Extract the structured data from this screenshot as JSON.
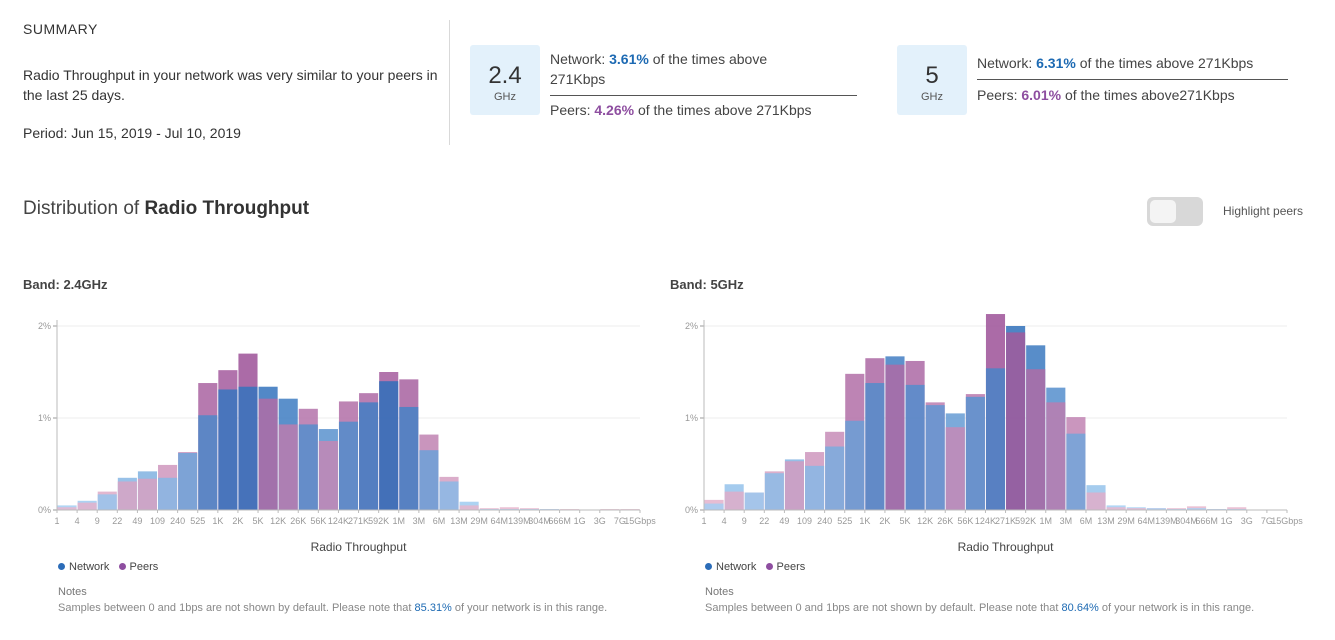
{
  "summary": {
    "title": "SUMMARY",
    "text": "Radio Throughput in your network was very similar to your peers in the last 25 days.",
    "period": "Period: Jun 15, 2019 - Jul 10, 2019"
  },
  "bands": [
    {
      "big": "2.4",
      "small": "GHz",
      "network_prefix": "Network: ",
      "network_pct": "3.61%",
      "network_suffix": " of the times above 271Kbps",
      "peers_prefix": "Peers: ",
      "peers_pct": "4.26%",
      "peers_suffix": " of the times above 271Kbps"
    },
    {
      "big": "5",
      "small": "GHz",
      "network_prefix": "Network: ",
      "network_pct": "6.31%",
      "network_suffix": " of the times above 271Kbps",
      "peers_prefix": "Peers: ",
      "peers_pct": "6.01%",
      "peers_suffix": " of the times above271Kbps"
    }
  ],
  "distribution": {
    "prefix": "Distribution of ",
    "bold": "Radio Throughput"
  },
  "toggle": {
    "label": "Highlight peers",
    "on": false
  },
  "colors": {
    "network": "#1a5eb0",
    "peers": "#8e3f8e",
    "network_light": "#a9d3f5",
    "peers_light": "#e8b9cf"
  },
  "charts": [
    {
      "band_label": "Band: 2.4GHz",
      "legend": {
        "network": "Network",
        "peers": "Peers"
      },
      "notes_title": "Notes",
      "notes_prefix": "Samples between 0 and 1bps are not shown by default. Please note that ",
      "notes_pct": "85.31%",
      "notes_suffix": " of your network is in this range."
    },
    {
      "band_label": "Band: 5GHz",
      "legend": {
        "network": "Network",
        "peers": "Peers"
      },
      "notes_title": "Notes",
      "notes_prefix": "Samples between 0 and 1bps are not shown by default. Please note that ",
      "notes_pct": "80.64%",
      "notes_suffix": " of your network is in this range."
    }
  ],
  "chart_data": [
    {
      "type": "bar",
      "title": "Band: 2.4GHz",
      "xlabel": "Radio Throughput",
      "ylabel": "",
      "ylim": [
        0,
        2
      ],
      "yticks": [
        "0%",
        "1%",
        "2%"
      ],
      "tick_labels": [
        "1",
        "4",
        "9",
        "22",
        "49",
        "109",
        "240",
        "525",
        "1K",
        "2K",
        "5K",
        "12K",
        "26K",
        "56K",
        "124K",
        "271K",
        "592K",
        "1M",
        "3M",
        "6M",
        "13M",
        "29M",
        "64M",
        "139M",
        "304M",
        "666M",
        "1G",
        "3G",
        "7G",
        "15Gbps"
      ],
      "series": [
        {
          "name": "Network",
          "values": [
            0.05,
            0.1,
            0.17,
            0.35,
            0.42,
            0.35,
            0.62,
            1.03,
            1.31,
            1.34,
            1.34,
            1.21,
            0.93,
            0.88,
            0.96,
            1.17,
            1.4,
            1.12,
            0.65,
            0.31,
            0.09,
            0.01,
            0.01,
            0.01,
            0.01,
            0.0,
            0.0,
            0.0,
            0.0
          ]
        },
        {
          "name": "Peers",
          "values": [
            0.03,
            0.08,
            0.2,
            0.31,
            0.34,
            0.49,
            0.63,
            1.38,
            1.52,
            1.7,
            1.21,
            0.93,
            1.1,
            0.75,
            1.18,
            1.27,
            1.5,
            1.42,
            0.82,
            0.36,
            0.05,
            0.02,
            0.03,
            0.02,
            0.01,
            0.01,
            0.0,
            0.01,
            0.01
          ]
        }
      ],
      "grid": true,
      "legend_position": "bottom-left"
    },
    {
      "type": "bar",
      "title": "Band: 5GHz",
      "xlabel": "Radio Throughput",
      "ylabel": "",
      "ylim": [
        0,
        2
      ],
      "yticks": [
        "0%",
        "1%",
        "2%"
      ],
      "tick_labels": [
        "1",
        "4",
        "9",
        "22",
        "49",
        "109",
        "240",
        "525",
        "1K",
        "2K",
        "5K",
        "12K",
        "26K",
        "56K",
        "124K",
        "271K",
        "592K",
        "1M",
        "3M",
        "6M",
        "13M",
        "29M",
        "64M",
        "139M",
        "304M",
        "666M",
        "1G",
        "3G",
        "7G",
        "15Gbps"
      ],
      "series": [
        {
          "name": "Network",
          "values": [
            0.07,
            0.28,
            0.19,
            0.4,
            0.55,
            0.48,
            0.69,
            0.97,
            1.38,
            1.67,
            1.36,
            1.14,
            1.05,
            1.23,
            1.54,
            2.0,
            1.79,
            1.33,
            0.83,
            0.27,
            0.05,
            0.03,
            0.02,
            0.01,
            0.02,
            0.01,
            0.01,
            0.0,
            0.0
          ]
        },
        {
          "name": "Peers",
          "values": [
            0.11,
            0.2,
            0.19,
            0.42,
            0.53,
            0.63,
            0.85,
            1.48,
            1.65,
            1.58,
            1.62,
            1.17,
            0.9,
            1.26,
            2.13,
            1.93,
            1.53,
            1.17,
            1.01,
            0.19,
            0.03,
            0.02,
            0.02,
            0.02,
            0.04,
            0.01,
            0.03,
            0.0,
            0.0
          ]
        }
      ],
      "grid": true,
      "legend_position": "bottom-left"
    }
  ]
}
